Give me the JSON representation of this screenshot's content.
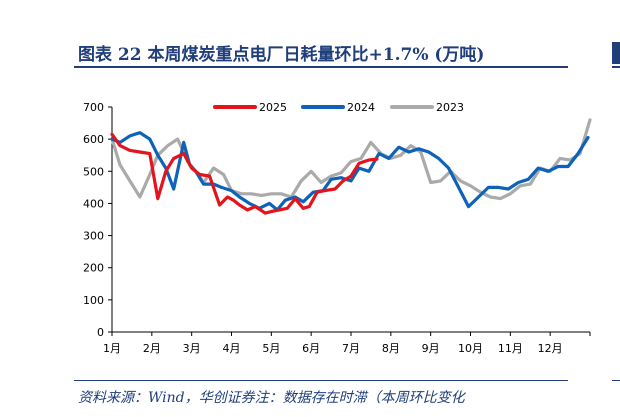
{
  "figure": {
    "title": "图表 22   本周煤炭重点电厂日耗量环比+1.7% (万吨)",
    "source": "资料来源：Wind，华创证券注：数据存在时滞（本周环比变化"
  },
  "chart_data": {
    "type": "line",
    "title": "",
    "xlabel": "",
    "ylabel": "",
    "ylim": [
      0,
      700
    ],
    "xlim": [
      1,
      13
    ],
    "y_ticks": [
      0,
      100,
      200,
      300,
      400,
      500,
      600,
      700
    ],
    "x_tick_labels": [
      "1月",
      "2月",
      "3月",
      "4月",
      "5月",
      "6月",
      "7月",
      "8月",
      "9月",
      "10月",
      "11月",
      "12月"
    ],
    "legend_position": "top",
    "grid": false,
    "series": [
      {
        "name": "2025",
        "color": "#e3141c",
        "x": [
          1.0,
          1.2,
          1.45,
          1.7,
          1.95,
          2.15,
          2.35,
          2.55,
          2.8,
          3.0,
          3.2,
          3.45,
          3.7,
          3.9,
          4.05,
          4.2,
          4.4,
          4.6,
          4.85,
          5.0,
          5.2,
          5.4,
          5.6,
          5.8,
          5.95,
          6.15,
          6.35,
          6.6,
          6.8,
          7.0,
          7.2,
          7.45,
          7.65
        ],
        "values": [
          615,
          580,
          565,
          560,
          555,
          415,
          500,
          540,
          555,
          510,
          490,
          485,
          395,
          420,
          410,
          395,
          380,
          390,
          370,
          375,
          380,
          385,
          415,
          385,
          390,
          435,
          440,
          445,
          470,
          485,
          525,
          535,
          538
        ]
      },
      {
        "name": "2024",
        "color": "#0e62b8",
        "x": [
          1.0,
          1.2,
          1.45,
          1.7,
          1.95,
          2.15,
          2.35,
          2.55,
          2.8,
          2.95,
          3.1,
          3.3,
          3.55,
          3.75,
          4.0,
          4.2,
          4.45,
          4.7,
          4.95,
          5.15,
          5.35,
          5.6,
          5.8,
          6.05,
          6.3,
          6.5,
          6.75,
          7.0,
          7.2,
          7.45,
          7.7,
          7.95,
          8.2,
          8.45,
          8.7,
          8.95,
          9.2,
          9.45,
          9.7,
          9.95,
          10.2,
          10.45,
          10.7,
          10.95,
          11.2,
          11.45,
          11.7,
          11.95,
          12.2,
          12.45,
          12.7,
          12.95
        ],
        "values": [
          600,
          590,
          610,
          620,
          600,
          550,
          510,
          445,
          590,
          520,
          500,
          460,
          460,
          450,
          440,
          420,
          400,
          385,
          400,
          380,
          410,
          420,
          405,
          435,
          440,
          475,
          480,
          470,
          510,
          500,
          555,
          540,
          575,
          560,
          570,
          560,
          540,
          510,
          450,
          390,
          420,
          450,
          450,
          445,
          465,
          475,
          510,
          500,
          515,
          515,
          555,
          605
        ]
      },
      {
        "name": "2023",
        "color": "#aaaaaa",
        "x": [
          1.0,
          1.2,
          1.45,
          1.7,
          1.95,
          2.15,
          2.4,
          2.65,
          2.9,
          3.1,
          3.3,
          3.55,
          3.8,
          4.0,
          4.25,
          4.5,
          4.75,
          5.0,
          5.25,
          5.5,
          5.75,
          6.0,
          6.25,
          6.5,
          6.75,
          7.0,
          7.25,
          7.5,
          7.75,
          8.0,
          8.25,
          8.5,
          8.75,
          9.0,
          9.25,
          9.5,
          9.75,
          10.0,
          10.25,
          10.5,
          10.75,
          11.0,
          11.25,
          11.5,
          11.75,
          12.0,
          12.25,
          12.5,
          12.75,
          13.0
        ],
        "values": [
          600,
          520,
          470,
          420,
          490,
          550,
          580,
          600,
          530,
          500,
          465,
          510,
          490,
          440,
          430,
          430,
          425,
          430,
          430,
          420,
          470,
          500,
          465,
          485,
          495,
          530,
          540,
          590,
          555,
          540,
          550,
          580,
          560,
          465,
          470,
          500,
          470,
          455,
          435,
          420,
          415,
          430,
          455,
          460,
          510,
          500,
          540,
          535,
          555,
          660
        ]
      }
    ]
  }
}
